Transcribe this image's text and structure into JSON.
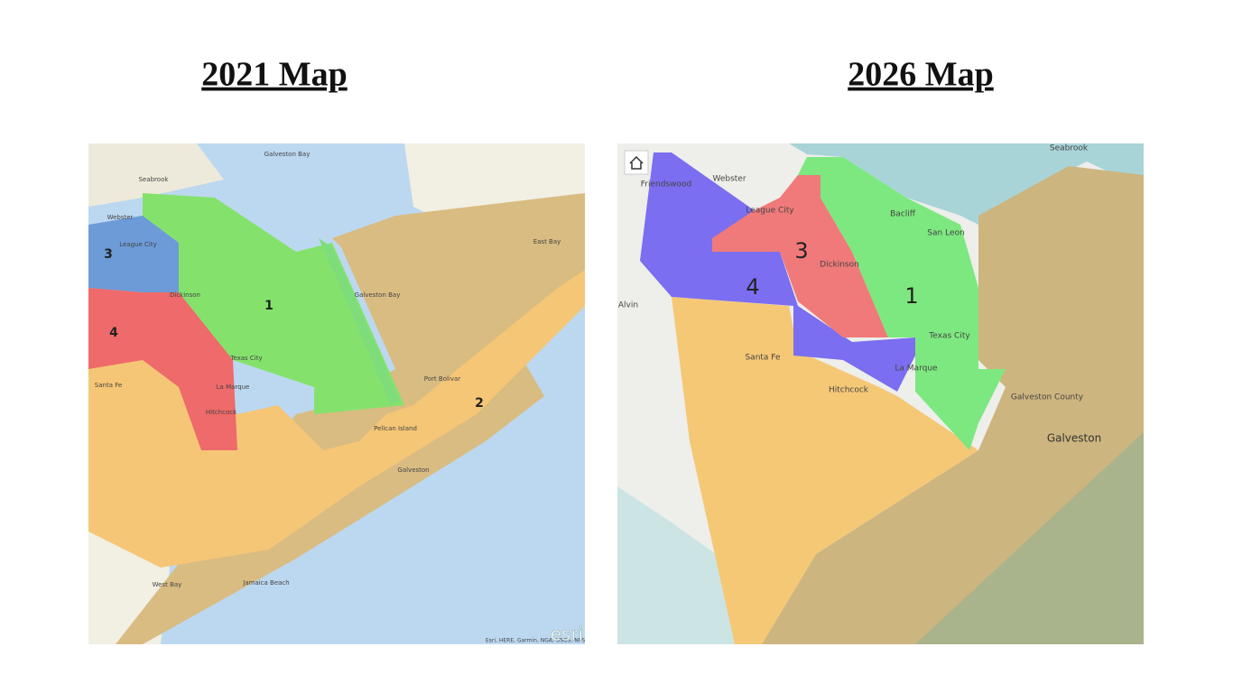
{
  "titles": [
    "2021 Map",
    "2026 Map"
  ],
  "maps": [
    {
      "districts": [
        "1",
        "2",
        "3",
        "4"
      ],
      "places": [
        "Galveston Bay",
        "Seabrook",
        "Webster",
        "League City",
        "Dickinson",
        "Texas City",
        "La Marque",
        "Santa Fe",
        "Hitchcock",
        "Galveston Bay",
        "East Bay",
        "Port Bolivar",
        "Pelican Island",
        "Galveston",
        "Jamaica Beach",
        "West Bay"
      ],
      "attribution": "Esri, HERE, Garmin, NGA, USGS, NPS",
      "logo": "esri"
    },
    {
      "districts": [
        "1",
        "3",
        "4"
      ],
      "places": [
        "Seabrook",
        "Friendswood",
        "Webster",
        "League City",
        "Bacliff",
        "San Leon",
        "Dickinson",
        "Alvin",
        "Texas City",
        "Santa Fe",
        "La Marque",
        "Hitchcock",
        "Galveston County",
        "Galveston"
      ]
    }
  ]
}
